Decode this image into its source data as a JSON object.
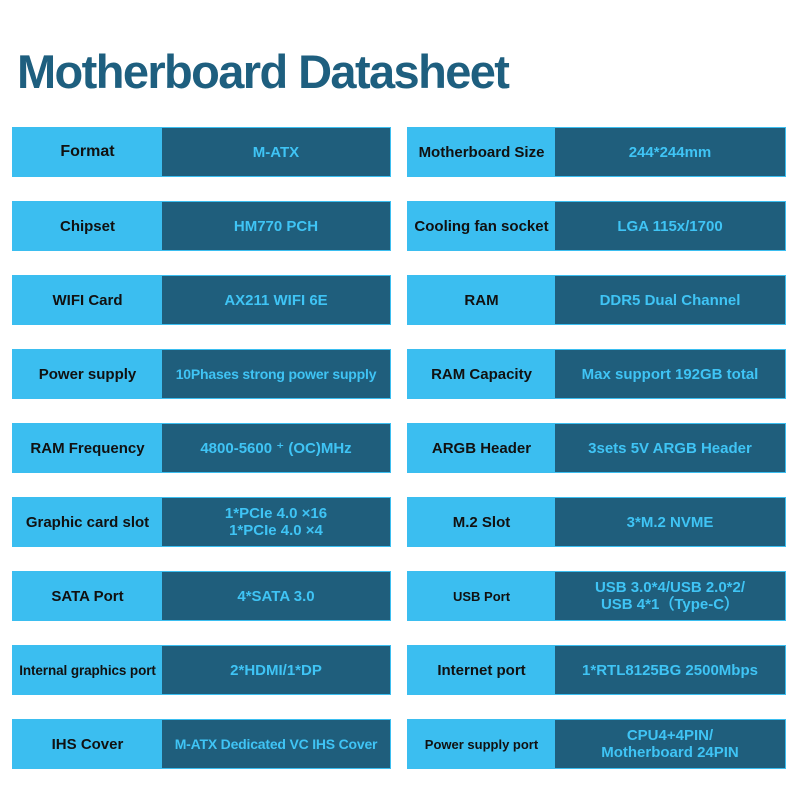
{
  "title": "Motherboard Datasheet",
  "colors": {
    "page_bg": "#ffffff",
    "title": "#1e5f7f",
    "label_bg": "#3bbef0",
    "label_text": "#111111",
    "value_bg": "#1f5e7c",
    "value_text": "#3fc4f5"
  },
  "specs": {
    "left": [
      {
        "label": "Format",
        "value": [
          "M-ATX"
        ]
      },
      {
        "label": "Chipset",
        "value": [
          "HM770 PCH"
        ]
      },
      {
        "label": "WIFI Card",
        "value": [
          "AX211 WIFI 6E"
        ]
      },
      {
        "label": "Power supply",
        "value": [
          "10Phases strong power supply"
        ]
      },
      {
        "label": "RAM Frequency",
        "value": [
          "4800-5600 ⁺ (OC)MHz"
        ]
      },
      {
        "label": "Graphic card slot",
        "value": [
          "1*PCIe 4.0 ×16",
          "1*PCIe 4.0 ×4"
        ]
      },
      {
        "label": "SATA Port",
        "value": [
          "4*SATA 3.0"
        ]
      },
      {
        "label": "Internal graphics port",
        "value": [
          "2*HDMI/1*DP"
        ]
      },
      {
        "label": "IHS Cover",
        "value": [
          "M-ATX Dedicated VC IHS Cover"
        ]
      }
    ],
    "right": [
      {
        "label": "Motherboard Size",
        "value": [
          "244*244mm"
        ]
      },
      {
        "label": "Cooling fan socket",
        "value": [
          "LGA 115x/1700"
        ]
      },
      {
        "label": "RAM",
        "value": [
          "DDR5 Dual Channel"
        ]
      },
      {
        "label": "RAM Capacity",
        "value": [
          "Max support 192GB total"
        ]
      },
      {
        "label": "ARGB Header",
        "value": [
          "3sets 5V ARGB Header"
        ]
      },
      {
        "label": "M.2 Slot",
        "value": [
          "3*M.2 NVME"
        ]
      },
      {
        "label": "USB Port",
        "value": [
          "USB 3.0*4/USB 2.0*2/",
          "USB 4*1（Type-C）"
        ]
      },
      {
        "label": "Internet port",
        "value": [
          "1*RTL8125BG 2500Mbps"
        ]
      },
      {
        "label": "Power supply port",
        "value": [
          "CPU4+4PIN/",
          "Motherboard 24PIN"
        ]
      }
    ]
  }
}
